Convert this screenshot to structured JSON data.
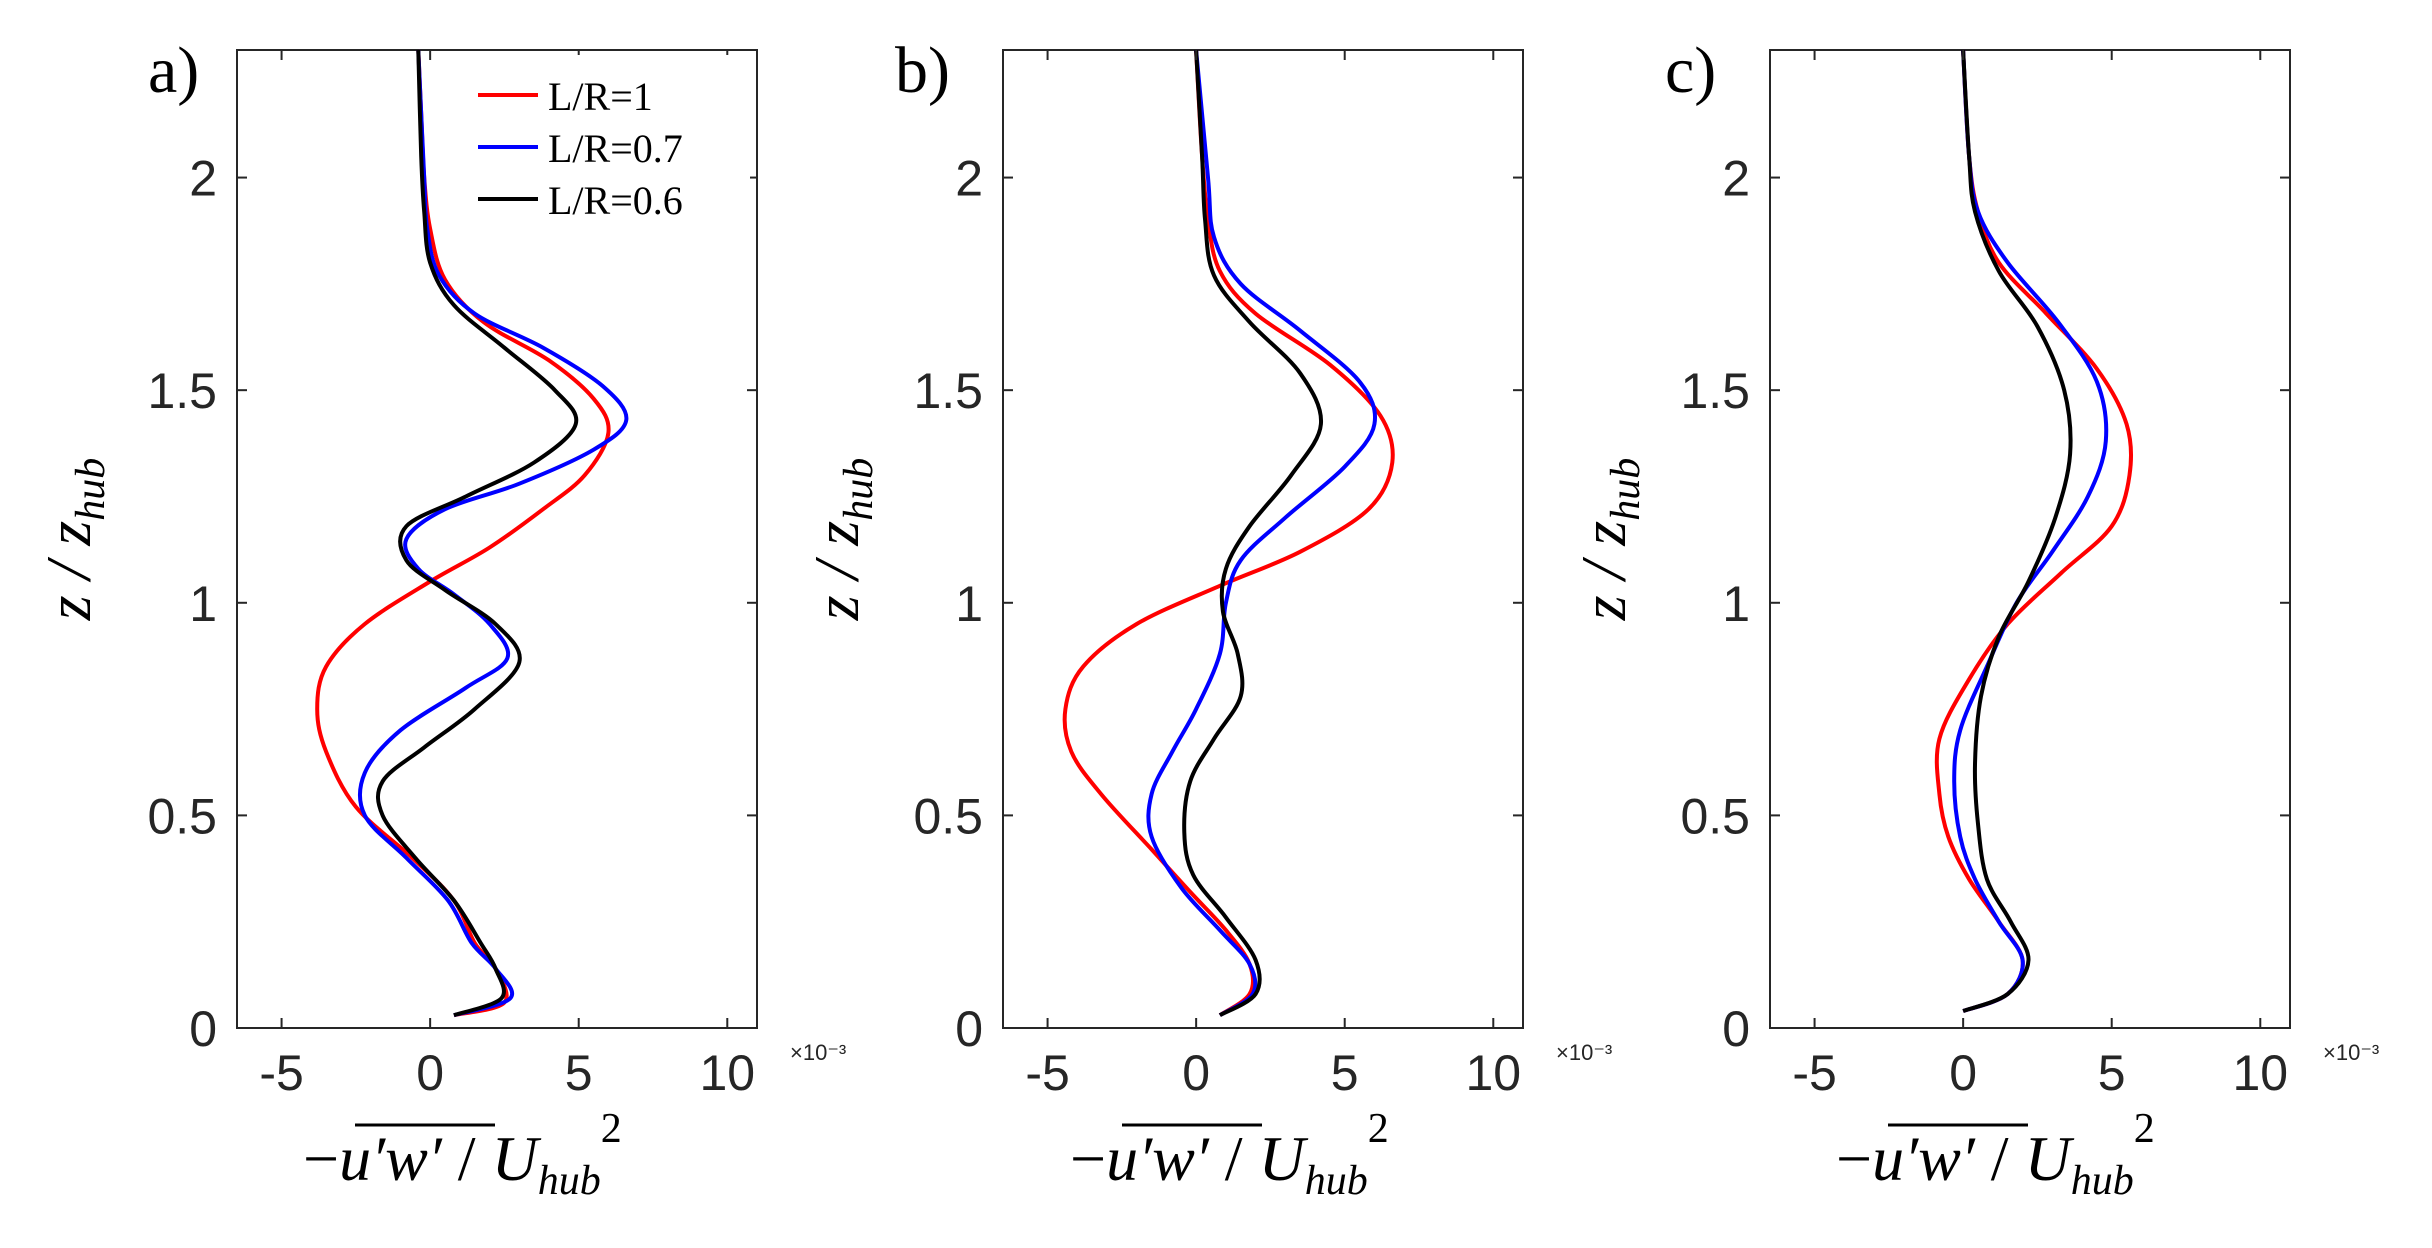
{
  "chart_data": [
    {
      "type": "line",
      "panel_label": "a)",
      "xlabel": "-u'w'/U_hub^2",
      "ylabel": "z/z_hub",
      "xlim": [
        -0.0065,
        0.011
      ],
      "ylim": [
        0,
        2.3
      ],
      "xticks": [
        -0.005,
        0,
        0.005,
        0.01
      ],
      "xtick_labels": [
        "-5",
        "0",
        "5",
        "10"
      ],
      "yticks": [
        0,
        0.5,
        1,
        1.5,
        2
      ],
      "ytick_labels": [
        "0",
        "0.5",
        "1",
        "1.5",
        "2"
      ],
      "x_exponent": "×10⁻³",
      "legend": {
        "position": "top-right",
        "entries": [
          "L/R=1",
          "L/R=0.7",
          "L/R=0.6"
        ]
      },
      "series": [
        {
          "name": "L/R=1",
          "color": "#ff0000",
          "points": [
            [
              0.0008,
              0.03
            ],
            [
              0.0025,
              0.06
            ],
            [
              0.0022,
              0.14
            ],
            [
              0.0015,
              0.2
            ],
            [
              0.0008,
              0.3
            ],
            [
              -0.0006,
              0.4
            ],
            [
              -0.0025,
              0.52
            ],
            [
              -0.0035,
              0.65
            ],
            [
              -0.0038,
              0.75
            ],
            [
              -0.0035,
              0.85
            ],
            [
              -0.0022,
              0.95
            ],
            [
              0.0,
              1.05
            ],
            [
              0.002,
              1.13
            ],
            [
              0.0038,
              1.22
            ],
            [
              0.0052,
              1.3
            ],
            [
              0.006,
              1.4
            ],
            [
              0.0055,
              1.48
            ],
            [
              0.004,
              1.57
            ],
            [
              0.0018,
              1.66
            ],
            [
              0.0005,
              1.76
            ],
            [
              0.0,
              1.88
            ],
            [
              -0.0002,
              2.0
            ],
            [
              -0.0003,
              2.15
            ],
            [
              -0.0004,
              2.3
            ]
          ]
        },
        {
          "name": "L/R=0.7",
          "color": "#0000ff",
          "points": [
            [
              0.0008,
              0.03
            ],
            [
              0.0027,
              0.07
            ],
            [
              0.0022,
              0.14
            ],
            [
              0.0014,
              0.2
            ],
            [
              0.0006,
              0.3
            ],
            [
              -0.0008,
              0.4
            ],
            [
              -0.0022,
              0.5
            ],
            [
              -0.0022,
              0.6
            ],
            [
              -0.001,
              0.7
            ],
            [
              0.0012,
              0.8
            ],
            [
              0.0026,
              0.87
            ],
            [
              0.002,
              0.95
            ],
            [
              0.0008,
              1.02
            ],
            [
              -0.0004,
              1.08
            ],
            [
              -0.0008,
              1.15
            ],
            [
              0.0005,
              1.22
            ],
            [
              0.003,
              1.28
            ],
            [
              0.0055,
              1.36
            ],
            [
              0.0066,
              1.43
            ],
            [
              0.0058,
              1.51
            ],
            [
              0.0038,
              1.6
            ],
            [
              0.0015,
              1.68
            ],
            [
              0.0003,
              1.77
            ],
            [
              -0.0001,
              1.88
            ],
            [
              -0.0002,
              2.0
            ],
            [
              -0.0003,
              2.15
            ],
            [
              -0.0004,
              2.3
            ]
          ]
        },
        {
          "name": "L/R=0.6",
          "color": "#000000",
          "points": [
            [
              0.0008,
              0.03
            ],
            [
              0.0024,
              0.07
            ],
            [
              0.0022,
              0.14
            ],
            [
              0.0017,
              0.2
            ],
            [
              0.0008,
              0.3
            ],
            [
              -0.0005,
              0.4
            ],
            [
              -0.0016,
              0.5
            ],
            [
              -0.0016,
              0.58
            ],
            [
              -0.0002,
              0.66
            ],
            [
              0.0015,
              0.75
            ],
            [
              0.003,
              0.86
            ],
            [
              0.0022,
              0.95
            ],
            [
              0.0005,
              1.03
            ],
            [
              -0.0008,
              1.1
            ],
            [
              -0.0008,
              1.18
            ],
            [
              0.0012,
              1.25
            ],
            [
              0.0035,
              1.33
            ],
            [
              0.0049,
              1.42
            ],
            [
              0.0042,
              1.5
            ],
            [
              0.0025,
              1.6
            ],
            [
              0.0008,
              1.7
            ],
            [
              0.0,
              1.8
            ],
            [
              -0.0002,
              1.92
            ],
            [
              -0.0003,
              2.05
            ],
            [
              -0.0004,
              2.3
            ]
          ]
        }
      ]
    },
    {
      "type": "line",
      "panel_label": "b)",
      "xlabel": "-u'w'/U_hub^2",
      "ylabel": "z/z_hub",
      "xlim": [
        -0.0065,
        0.011
      ],
      "ylim": [
        0,
        2.3
      ],
      "xticks": [
        -0.005,
        0,
        0.005,
        0.01
      ],
      "xtick_labels": [
        "-5",
        "0",
        "5",
        "10"
      ],
      "yticks": [
        0,
        0.5,
        1,
        1.5,
        2
      ],
      "ytick_labels": [
        "0",
        "0.5",
        "1",
        "1.5",
        "2"
      ],
      "x_exponent": "×10⁻³",
      "series": [
        {
          "name": "L/R=1",
          "color": "#ff0000",
          "points": [
            [
              0.0008,
              0.03
            ],
            [
              0.0018,
              0.08
            ],
            [
              0.0018,
              0.15
            ],
            [
              0.001,
              0.23
            ],
            [
              -0.0002,
              0.32
            ],
            [
              -0.0015,
              0.42
            ],
            [
              -0.0032,
              0.55
            ],
            [
              -0.0042,
              0.65
            ],
            [
              -0.0044,
              0.75
            ],
            [
              -0.0038,
              0.85
            ],
            [
              -0.002,
              0.95
            ],
            [
              0.0008,
              1.04
            ],
            [
              0.0035,
              1.12
            ],
            [
              0.0058,
              1.22
            ],
            [
              0.0066,
              1.33
            ],
            [
              0.0062,
              1.44
            ],
            [
              0.0045,
              1.56
            ],
            [
              0.002,
              1.68
            ],
            [
              0.0008,
              1.78
            ],
            [
              0.0004,
              1.9
            ],
            [
              0.0002,
              2.05
            ],
            [
              0.0,
              2.3
            ]
          ]
        },
        {
          "name": "L/R=0.7",
          "color": "#0000ff",
          "points": [
            [
              0.0008,
              0.03
            ],
            [
              0.0019,
              0.08
            ],
            [
              0.0018,
              0.15
            ],
            [
              0.0008,
              0.23
            ],
            [
              -0.0005,
              0.33
            ],
            [
              -0.0015,
              0.45
            ],
            [
              -0.0015,
              0.55
            ],
            [
              -0.0008,
              0.65
            ],
            [
              0.0,
              0.75
            ],
            [
              0.0008,
              0.88
            ],
            [
              0.001,
              1.0
            ],
            [
              0.0015,
              1.1
            ],
            [
              0.003,
              1.2
            ],
            [
              0.005,
              1.32
            ],
            [
              0.006,
              1.42
            ],
            [
              0.0055,
              1.52
            ],
            [
              0.0035,
              1.64
            ],
            [
              0.0015,
              1.75
            ],
            [
              0.0006,
              1.86
            ],
            [
              0.0004,
              2.0
            ],
            [
              0.0,
              2.3
            ]
          ]
        },
        {
          "name": "L/R=0.6",
          "color": "#000000",
          "points": [
            [
              0.0008,
              0.03
            ],
            [
              0.002,
              0.08
            ],
            [
              0.002,
              0.16
            ],
            [
              0.001,
              0.26
            ],
            [
              -0.0001,
              0.36
            ],
            [
              -0.0004,
              0.46
            ],
            [
              -0.0002,
              0.58
            ],
            [
              0.0006,
              0.68
            ],
            [
              0.0015,
              0.78
            ],
            [
              0.0014,
              0.88
            ],
            [
              0.0009,
              0.98
            ],
            [
              0.001,
              1.08
            ],
            [
              0.0018,
              1.18
            ],
            [
              0.0032,
              1.3
            ],
            [
              0.0042,
              1.42
            ],
            [
              0.0035,
              1.54
            ],
            [
              0.0018,
              1.66
            ],
            [
              0.0006,
              1.77
            ],
            [
              0.0003,
              1.9
            ],
            [
              0.0002,
              2.05
            ],
            [
              0.0,
              2.3
            ]
          ]
        }
      ]
    },
    {
      "type": "line",
      "panel_label": "c)",
      "xlabel": "-u'w'/U_hub^2",
      "ylabel": "z/z_hub",
      "xlim": [
        -0.0065,
        0.011
      ],
      "ylim": [
        0,
        2.3
      ],
      "xticks": [
        -0.005,
        0,
        0.005,
        0.01
      ],
      "xtick_labels": [
        "-5",
        "0",
        "5",
        "10"
      ],
      "yticks": [
        0,
        0.5,
        1,
        1.5,
        2
      ],
      "ytick_labels": [
        "0",
        "0.5",
        "1",
        "1.5",
        "2"
      ],
      "x_exponent": "×10⁻³",
      "series": [
        {
          "name": "L/R=1",
          "color": "#ff0000",
          "points": [
            [
              0.0,
              0.04
            ],
            [
              0.0015,
              0.08
            ],
            [
              0.002,
              0.16
            ],
            [
              0.0012,
              0.25
            ],
            [
              0.0002,
              0.35
            ],
            [
              -0.0005,
              0.45
            ],
            [
              -0.0008,
              0.55
            ],
            [
              -0.0008,
              0.68
            ],
            [
              0.0002,
              0.82
            ],
            [
              0.0015,
              0.95
            ],
            [
              0.0033,
              1.07
            ],
            [
              0.005,
              1.18
            ],
            [
              0.0056,
              1.3
            ],
            [
              0.0055,
              1.42
            ],
            [
              0.0045,
              1.55
            ],
            [
              0.0028,
              1.68
            ],
            [
              0.0012,
              1.8
            ],
            [
              0.0005,
              1.92
            ],
            [
              0.0002,
              2.05
            ],
            [
              0.0,
              2.3
            ]
          ]
        },
        {
          "name": "L/R=0.7",
          "color": "#0000ff",
          "points": [
            [
              0.0,
              0.04
            ],
            [
              0.0015,
              0.08
            ],
            [
              0.002,
              0.16
            ],
            [
              0.0012,
              0.25
            ],
            [
              0.0004,
              0.35
            ],
            [
              -0.0001,
              0.45
            ],
            [
              -0.0003,
              0.58
            ],
            [
              -0.0001,
              0.7
            ],
            [
              0.0008,
              0.85
            ],
            [
              0.0018,
              1.0
            ],
            [
              0.003,
              1.12
            ],
            [
              0.0042,
              1.25
            ],
            [
              0.0048,
              1.38
            ],
            [
              0.0045,
              1.52
            ],
            [
              0.0032,
              1.66
            ],
            [
              0.0015,
              1.8
            ],
            [
              0.0005,
              1.92
            ],
            [
              0.0002,
              2.05
            ],
            [
              0.0,
              2.3
            ]
          ]
        },
        {
          "name": "L/R=0.6",
          "color": "#000000",
          "points": [
            [
              0.0,
              0.04
            ],
            [
              0.0015,
              0.08
            ],
            [
              0.0022,
              0.16
            ],
            [
              0.0016,
              0.25
            ],
            [
              0.0008,
              0.35
            ],
            [
              0.0005,
              0.48
            ],
            [
              0.0004,
              0.62
            ],
            [
              0.0006,
              0.78
            ],
            [
              0.0012,
              0.92
            ],
            [
              0.0022,
              1.05
            ],
            [
              0.0031,
              1.2
            ],
            [
              0.0036,
              1.35
            ],
            [
              0.0034,
              1.5
            ],
            [
              0.0025,
              1.65
            ],
            [
              0.0012,
              1.78
            ],
            [
              0.0004,
              1.92
            ],
            [
              0.0002,
              2.05
            ],
            [
              0.0,
              2.3
            ]
          ]
        }
      ]
    }
  ]
}
